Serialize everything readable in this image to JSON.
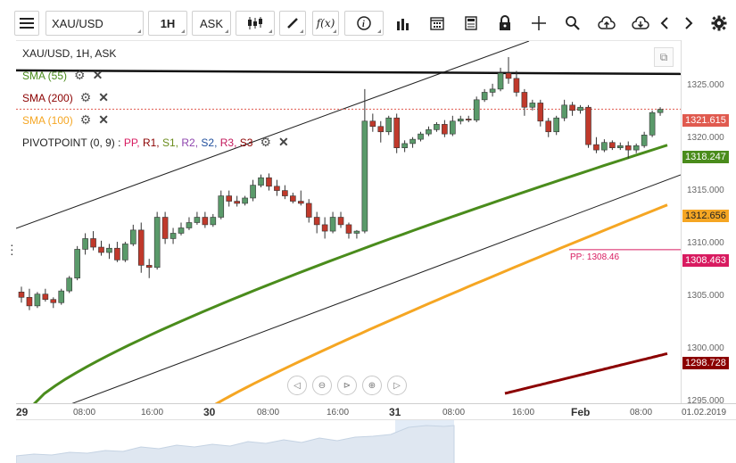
{
  "toolbar": {
    "symbol": "XAU/USD",
    "interval": "1H",
    "price_type": "ASK",
    "icons": [
      "menu-icon",
      "candlestick-icon",
      "pencil-icon",
      "function-icon",
      "info-icon",
      "bar-chart-icon",
      "calendar-icon",
      "report-icon",
      "lock-icon",
      "crosshair-icon",
      "zoom-icon",
      "upload-icon",
      "download-icon",
      "chevron-left-icon",
      "chevron-right-icon",
      "gear-icon"
    ],
    "fx_label": "f(x)"
  },
  "legend": {
    "title": "XAU/USD, 1H, ASK",
    "sma55": "SMA (55)",
    "sma200": "SMA (200)",
    "sma100": "SMA (100)",
    "pivot": "PIVOTPOINT (0, 9)",
    "pivot_sep": " : ",
    "pivot_items": [
      "PP,",
      "R1,",
      "S1,",
      "R2,",
      "S2,",
      "R3,",
      "S3"
    ]
  },
  "colors": {
    "up": "#5a9a6a",
    "down": "#c0392b",
    "sma55": "#4a8c1c",
    "sma100": "#f5a623",
    "sma200": "#8b0000",
    "pp": "#d81b60",
    "resistance": "#111111"
  },
  "price_axis": {
    "ticks": [
      "1325.000",
      "1320.000",
      "1315.000",
      "1310.000",
      "1305.000",
      "1300.000",
      "1295.000"
    ],
    "tags": {
      "last": "1321.615",
      "sma55": "1318.247",
      "sma100": "1312.656",
      "pp": "1308.463",
      "sma200": "1298.728"
    }
  },
  "pp_label": "PP: 1308.46",
  "time_axis": {
    "labels": [
      {
        "text": "29",
        "big": true
      },
      {
        "text": "08:00"
      },
      {
        "text": "16:00"
      },
      {
        "text": "30",
        "big": true
      },
      {
        "text": "08:00"
      },
      {
        "text": "16:00"
      },
      {
        "text": "31",
        "big": true
      },
      {
        "text": "08:00"
      },
      {
        "text": "16:00"
      },
      {
        "text": "Feb",
        "big": true
      },
      {
        "text": "08:00"
      },
      {
        "text": "01.02.2019"
      }
    ]
  },
  "chart_data": {
    "type": "candlestick",
    "title": "XAU/USD, 1H, ASK",
    "y_range": [
      1294,
      1328
    ],
    "candles": [
      [
        1304.5,
        1305.0,
        1303.5,
        1304.0
      ],
      [
        1304.0,
        1304.8,
        1302.8,
        1303.2
      ],
      [
        1303.2,
        1304.5,
        1303.0,
        1304.3
      ],
      [
        1304.3,
        1304.8,
        1303.6,
        1303.8
      ],
      [
        1303.8,
        1304.0,
        1303.0,
        1303.5
      ],
      [
        1303.5,
        1304.8,
        1303.3,
        1304.6
      ],
      [
        1304.6,
        1306.0,
        1304.4,
        1305.8
      ],
      [
        1305.8,
        1308.8,
        1305.6,
        1308.5
      ],
      [
        1308.5,
        1310.0,
        1308.0,
        1309.5
      ],
      [
        1309.5,
        1310.2,
        1308.4,
        1308.7
      ],
      [
        1308.7,
        1309.3,
        1307.9,
        1308.2
      ],
      [
        1308.2,
        1309.0,
        1307.6,
        1308.6
      ],
      [
        1308.6,
        1309.2,
        1307.3,
        1307.5
      ],
      [
        1307.5,
        1309.2,
        1307.3,
        1309.0
      ],
      [
        1309.0,
        1310.8,
        1308.8,
        1310.3
      ],
      [
        1310.3,
        1311.0,
        1306.3,
        1307.0
      ],
      [
        1307.0,
        1307.6,
        1305.8,
        1306.8
      ],
      [
        1306.8,
        1312.0,
        1306.6,
        1311.5
      ],
      [
        1311.5,
        1312.0,
        1309.0,
        1309.5
      ],
      [
        1309.5,
        1310.5,
        1309.0,
        1310.0
      ],
      [
        1310.0,
        1311.0,
        1309.8,
        1310.5
      ],
      [
        1310.5,
        1311.5,
        1310.3,
        1311.0
      ],
      [
        1311.0,
        1312.0,
        1310.8,
        1311.5
      ],
      [
        1311.5,
        1312.0,
        1310.5,
        1310.8
      ],
      [
        1310.8,
        1311.8,
        1310.6,
        1311.5
      ],
      [
        1311.5,
        1314.0,
        1311.3,
        1313.5
      ],
      [
        1313.5,
        1314.0,
        1312.5,
        1313.0
      ],
      [
        1313.0,
        1313.5,
        1312.5,
        1312.8
      ],
      [
        1312.8,
        1313.5,
        1312.6,
        1313.3
      ],
      [
        1313.3,
        1315.0,
        1313.0,
        1314.5
      ],
      [
        1314.5,
        1315.5,
        1314.3,
        1315.2
      ],
      [
        1315.2,
        1315.6,
        1314.0,
        1314.4
      ],
      [
        1314.4,
        1315.0,
        1313.5,
        1314.0
      ],
      [
        1314.0,
        1314.5,
        1313.2,
        1313.5
      ],
      [
        1313.5,
        1313.8,
        1312.8,
        1313.0
      ],
      [
        1313.0,
        1314.0,
        1312.6,
        1312.8
      ],
      [
        1312.8,
        1313.2,
        1311.0,
        1311.5
      ],
      [
        1311.5,
        1312.0,
        1310.0,
        1310.8
      ],
      [
        1310.8,
        1311.5,
        1309.5,
        1310.2
      ],
      [
        1310.2,
        1312.0,
        1310.0,
        1311.5
      ],
      [
        1311.5,
        1312.0,
        1310.5,
        1310.8
      ],
      [
        1310.8,
        1311.0,
        1309.5,
        1310.0
      ],
      [
        1310.0,
        1310.3,
        1309.5,
        1310.2
      ],
      [
        1310.2,
        1323.5,
        1310.0,
        1320.5
      ],
      [
        1320.5,
        1321.2,
        1319.5,
        1320.0
      ],
      [
        1320.0,
        1320.5,
        1318.5,
        1319.5
      ],
      [
        1319.5,
        1321.0,
        1319.2,
        1320.8
      ],
      [
        1320.8,
        1321.2,
        1317.5,
        1318.0
      ],
      [
        1318.0,
        1318.7,
        1317.6,
        1318.4
      ],
      [
        1318.4,
        1319.0,
        1318.0,
        1318.8
      ],
      [
        1318.8,
        1319.5,
        1318.6,
        1319.3
      ],
      [
        1319.3,
        1320.0,
        1319.1,
        1319.7
      ],
      [
        1319.7,
        1320.4,
        1319.5,
        1320.2
      ],
      [
        1320.2,
        1320.6,
        1319.0,
        1319.3
      ],
      [
        1319.3,
        1321.0,
        1319.1,
        1320.5
      ],
      [
        1320.5,
        1321.0,
        1320.2,
        1320.7
      ],
      [
        1320.7,
        1321.0,
        1320.4,
        1320.6
      ],
      [
        1320.6,
        1322.8,
        1320.4,
        1322.5
      ],
      [
        1322.5,
        1323.5,
        1322.3,
        1323.2
      ],
      [
        1323.2,
        1324.0,
        1322.8,
        1323.5
      ],
      [
        1323.5,
        1325.5,
        1323.3,
        1325.0
      ],
      [
        1325.0,
        1326.5,
        1324.0,
        1324.5
      ],
      [
        1324.5,
        1325.2,
        1322.8,
        1323.2
      ],
      [
        1323.2,
        1323.5,
        1321.0,
        1321.8
      ],
      [
        1321.8,
        1322.5,
        1321.5,
        1322.2
      ],
      [
        1322.2,
        1322.5,
        1320.0,
        1320.5
      ],
      [
        1320.5,
        1320.8,
        1319.0,
        1319.5
      ],
      [
        1319.5,
        1321.0,
        1319.2,
        1320.8
      ],
      [
        1320.8,
        1322.5,
        1320.5,
        1322.0
      ],
      [
        1322.0,
        1322.3,
        1321.0,
        1321.5
      ],
      [
        1321.5,
        1322.0,
        1321.2,
        1321.8
      ],
      [
        1321.8,
        1322.0,
        1318.0,
        1318.3
      ],
      [
        1318.3,
        1319.0,
        1317.5,
        1317.8
      ],
      [
        1317.8,
        1318.8,
        1317.6,
        1318.5
      ],
      [
        1318.5,
        1318.7,
        1317.8,
        1318.0
      ],
      [
        1318.0,
        1318.5,
        1317.8,
        1318.2
      ],
      [
        1318.2,
        1318.6,
        1317.0,
        1317.8
      ],
      [
        1317.8,
        1318.4,
        1317.5,
        1318.2
      ],
      [
        1318.2,
        1319.5,
        1318.0,
        1319.2
      ],
      [
        1319.2,
        1321.5,
        1319.0,
        1321.3
      ],
      [
        1321.3,
        1321.8,
        1321.0,
        1321.6
      ]
    ],
    "sma55_last": 1318.247,
    "sma100_last": 1312.656,
    "sma200_last": 1298.728,
    "pivot_pp": 1308.46,
    "resistance_level": 1325.0,
    "last_price": 1321.615
  }
}
